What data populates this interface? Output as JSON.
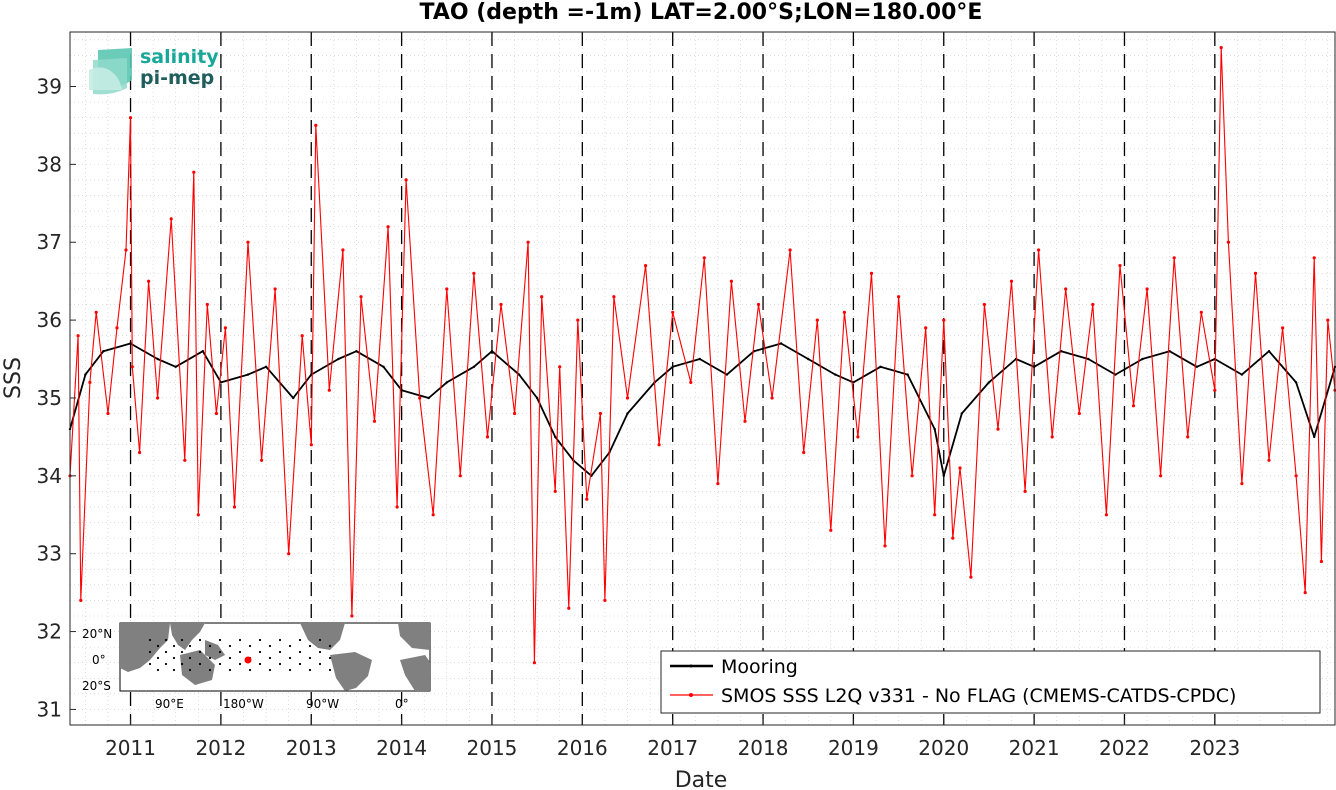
{
  "chart_data": {
    "type": "line",
    "title": "TAO (depth =-1m) LAT=2.00°S;LON=180.00°E",
    "xlabel": "Date",
    "ylabel": "SSS",
    "xlim": [
      2010.33,
      2024.33
    ],
    "ylim": [
      30.8,
      39.7
    ],
    "x_ticks": [
      "2011",
      "2012",
      "2013",
      "2014",
      "2015",
      "2016",
      "2017",
      "2018",
      "2019",
      "2020",
      "2021",
      "2022",
      "2023"
    ],
    "y_ticks": [
      31,
      32,
      33,
      34,
      35,
      36,
      37,
      38,
      39
    ],
    "grid": "minor-dotted",
    "legend_position": "bottom-right",
    "series": [
      {
        "name": "Mooring",
        "color": "#000000",
        "x": [
          2010.33,
          2010.5,
          2010.7,
          2011.0,
          2011.3,
          2011.5,
          2011.8,
          2012.0,
          2012.3,
          2012.5,
          2012.8,
          2013.0,
          2013.3,
          2013.5,
          2013.8,
          2014.0,
          2014.3,
          2014.5,
          2014.8,
          2015.0,
          2015.3,
          2015.5,
          2015.7,
          2015.9,
          2016.1,
          2016.3,
          2016.5,
          2016.8,
          2017.0,
          2017.3,
          2017.6,
          2017.9,
          2018.2,
          2018.5,
          2018.8,
          2019.0,
          2019.3,
          2019.6,
          2019.9,
          2020.0,
          2020.2,
          2020.5,
          2020.8,
          2021.0,
          2021.3,
          2021.6,
          2021.9,
          2022.2,
          2022.5,
          2022.8,
          2023.0,
          2023.3,
          2023.6,
          2023.9,
          2024.1,
          2024.33
        ],
        "values": [
          34.6,
          35.3,
          35.6,
          35.7,
          35.5,
          35.4,
          35.6,
          35.2,
          35.3,
          35.4,
          35.0,
          35.3,
          35.5,
          35.6,
          35.4,
          35.1,
          35.0,
          35.2,
          35.4,
          35.6,
          35.3,
          35.0,
          34.5,
          34.2,
          34.0,
          34.3,
          34.8,
          35.2,
          35.4,
          35.5,
          35.3,
          35.6,
          35.7,
          35.5,
          35.3,
          35.2,
          35.4,
          35.3,
          34.6,
          34.0,
          34.8,
          35.2,
          35.5,
          35.4,
          35.6,
          35.5,
          35.3,
          35.5,
          35.6,
          35.4,
          35.5,
          35.3,
          35.6,
          35.2,
          34.5,
          35.4
        ]
      },
      {
        "name": "SMOS SSS L2Q v331 - No FLAG  (CMEMS-CATDS-CPDC)",
        "color": "#ff0000",
        "x": [
          2010.33,
          2010.42,
          2010.45,
          2010.55,
          2010.62,
          2010.75,
          2010.85,
          2010.95,
          2011.0,
          2011.02,
          2011.1,
          2011.2,
          2011.3,
          2011.45,
          2011.6,
          2011.7,
          2011.75,
          2011.85,
          2011.95,
          2012.05,
          2012.15,
          2012.3,
          2012.45,
          2012.6,
          2012.75,
          2012.9,
          2013.0,
          2013.05,
          2013.2,
          2013.35,
          2013.45,
          2013.55,
          2013.7,
          2013.85,
          2013.95,
          2014.05,
          2014.2,
          2014.35,
          2014.5,
          2014.65,
          2014.8,
          2014.95,
          2015.1,
          2015.25,
          2015.4,
          2015.47,
          2015.55,
          2015.7,
          2015.75,
          2015.85,
          2015.95,
          2016.05,
          2016.2,
          2016.25,
          2016.35,
          2016.5,
          2016.7,
          2016.85,
          2017.0,
          2017.2,
          2017.35,
          2017.5,
          2017.65,
          2017.8,
          2017.95,
          2018.1,
          2018.3,
          2018.45,
          2018.6,
          2018.75,
          2018.9,
          2019.05,
          2019.2,
          2019.35,
          2019.5,
          2019.65,
          2019.8,
          2019.9,
          2020.0,
          2020.1,
          2020.18,
          2020.3,
          2020.45,
          2020.6,
          2020.75,
          2020.9,
          2021.05,
          2021.2,
          2021.35,
          2021.5,
          2021.65,
          2021.8,
          2021.95,
          2022.1,
          2022.25,
          2022.4,
          2022.55,
          2022.7,
          2022.85,
          2023.0,
          2023.07,
          2023.15,
          2023.3,
          2023.45,
          2023.6,
          2023.75,
          2023.9,
          2024.0,
          2024.1,
          2024.18,
          2024.25,
          2024.33
        ],
        "values": [
          34.0,
          35.8,
          32.4,
          35.2,
          36.1,
          34.8,
          35.9,
          36.9,
          38.6,
          35.4,
          34.3,
          36.5,
          35.0,
          37.3,
          34.2,
          37.9,
          33.5,
          36.2,
          34.8,
          35.9,
          33.6,
          37.0,
          34.2,
          36.4,
          33.0,
          35.8,
          34.4,
          38.5,
          35.1,
          36.9,
          32.2,
          36.3,
          34.7,
          37.2,
          33.6,
          37.8,
          35.0,
          33.5,
          36.4,
          34.0,
          36.6,
          34.5,
          36.2,
          34.8,
          37.0,
          31.6,
          36.3,
          33.8,
          35.4,
          32.3,
          36.0,
          33.7,
          34.8,
          32.4,
          36.3,
          35.0,
          36.7,
          34.4,
          36.1,
          35.2,
          36.8,
          33.9,
          36.5,
          34.7,
          36.2,
          35.0,
          36.9,
          34.3,
          36.0,
          33.3,
          36.1,
          34.5,
          36.6,
          33.1,
          36.3,
          34.0,
          35.9,
          33.5,
          36.0,
          33.2,
          34.1,
          32.7,
          36.2,
          34.6,
          36.5,
          33.8,
          36.9,
          34.5,
          36.4,
          34.8,
          36.2,
          33.5,
          36.7,
          34.9,
          36.4,
          34.0,
          36.8,
          34.5,
          36.1,
          35.1,
          39.5,
          37.0,
          33.9,
          36.6,
          34.2,
          35.9,
          34.0,
          32.5,
          36.8,
          32.9,
          36.0,
          35.1
        ]
      }
    ],
    "inset_map": {
      "lat_labels": [
        "20°N",
        "0°",
        "20°S"
      ],
      "lon_labels": [
        "90°E",
        "180°W",
        "90°W",
        "0°"
      ]
    },
    "logo": {
      "line1": "salinity",
      "line2": "pi-mep"
    }
  }
}
